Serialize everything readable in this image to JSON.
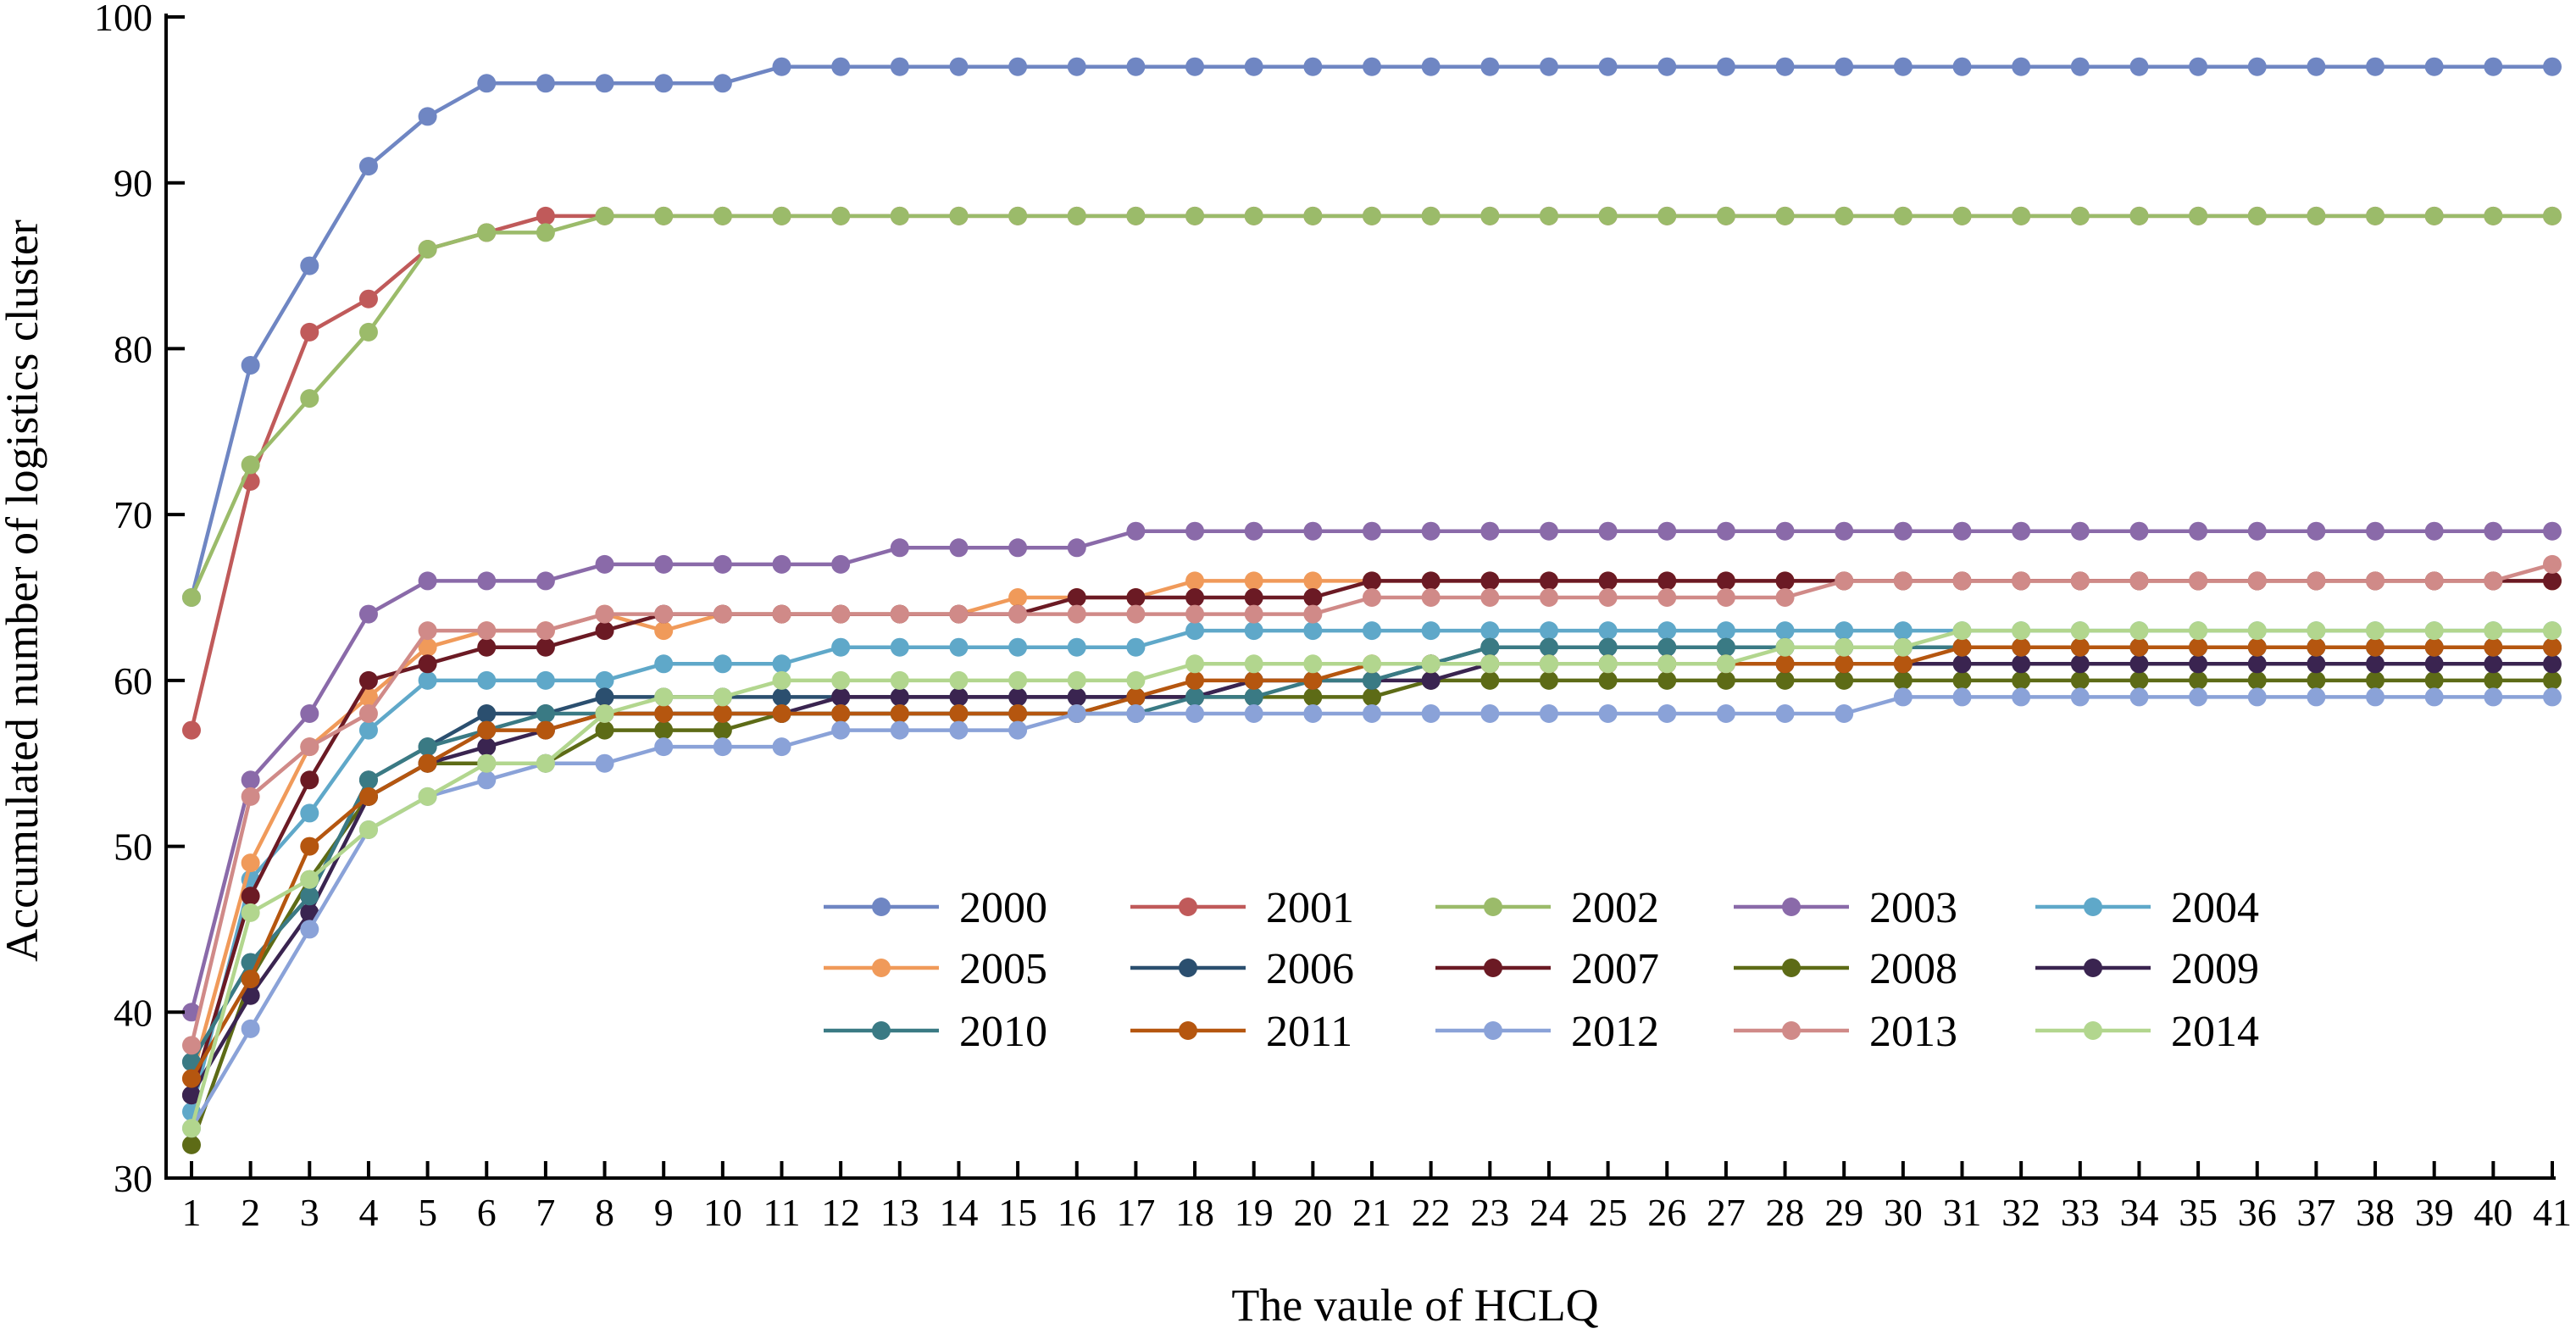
{
  "chart_data": {
    "type": "line",
    "title": "",
    "xlabel": "The vaule of HCLQ",
    "ylabel": "Accumulated number of logistics cluster",
    "x": [
      1,
      2,
      3,
      4,
      5,
      6,
      7,
      8,
      9,
      10,
      11,
      12,
      13,
      14,
      15,
      16,
      17,
      18,
      19,
      20,
      21,
      22,
      23,
      24,
      25,
      26,
      27,
      28,
      29,
      30,
      31,
      32,
      33,
      34,
      35,
      36,
      37,
      38,
      39,
      40,
      41
    ],
    "x_tick_labels": [
      "1",
      "2",
      "3",
      "4",
      "5",
      "6",
      "7",
      "8",
      "9",
      "10",
      "11",
      "12",
      "13",
      "14",
      "15",
      "16",
      "17",
      "18",
      "19",
      "20",
      "21",
      "22",
      "23",
      "24",
      "25",
      "26",
      "27",
      "28",
      "29",
      "30",
      "31",
      "32",
      "33",
      "34",
      "35",
      "36",
      "37",
      "38",
      "39",
      "40",
      "41"
    ],
    "ylim": [
      30,
      100
    ],
    "y_ticks": [
      30,
      40,
      50,
      60,
      70,
      80,
      90,
      100
    ],
    "y_tick_labels": [
      "30",
      "40",
      "50",
      "60",
      "70",
      "80",
      "90",
      "100"
    ],
    "grid": false,
    "legend_position": "bottom-center",
    "series": [
      {
        "name": "2000",
        "color": "#6f86c3",
        "values": [
          65,
          79,
          85,
          91,
          94,
          96,
          96,
          96,
          96,
          96,
          97,
          97,
          97,
          97,
          97,
          97,
          97,
          97,
          97,
          97,
          97,
          97,
          97,
          97,
          97,
          97,
          97,
          97,
          97,
          97,
          97,
          97,
          97,
          97,
          97,
          97,
          97,
          97,
          97,
          97,
          97
        ]
      },
      {
        "name": "2001",
        "color": "#c05a5a",
        "values": [
          57,
          72,
          81,
          83,
          86,
          87,
          88,
          88,
          88,
          88,
          88,
          88,
          88,
          88,
          88,
          88,
          88,
          88,
          88,
          88,
          88,
          88,
          88,
          88,
          88,
          88,
          88,
          88,
          88,
          88,
          88,
          88,
          88,
          88,
          88,
          88,
          88,
          88,
          88,
          88,
          88
        ]
      },
      {
        "name": "2002",
        "color": "#9bbb6a",
        "values": [
          65,
          73,
          77,
          81,
          86,
          87,
          87,
          88,
          88,
          88,
          88,
          88,
          88,
          88,
          88,
          88,
          88,
          88,
          88,
          88,
          88,
          88,
          88,
          88,
          88,
          88,
          88,
          88,
          88,
          88,
          88,
          88,
          88,
          88,
          88,
          88,
          88,
          88,
          88,
          88,
          88
        ]
      },
      {
        "name": "2003",
        "color": "#8a6aa9",
        "values": [
          40,
          54,
          58,
          64,
          66,
          66,
          66,
          67,
          67,
          67,
          67,
          67,
          68,
          68,
          68,
          68,
          69,
          69,
          69,
          69,
          69,
          69,
          69,
          69,
          69,
          69,
          69,
          69,
          69,
          69,
          69,
          69,
          69,
          69,
          69,
          69,
          69,
          69,
          69,
          69,
          69
        ]
      },
      {
        "name": "2004",
        "color": "#5fa8c9",
        "values": [
          34,
          48,
          52,
          57,
          60,
          60,
          60,
          60,
          61,
          61,
          61,
          62,
          62,
          62,
          62,
          62,
          62,
          63,
          63,
          63,
          63,
          63,
          63,
          63,
          63,
          63,
          63,
          63,
          63,
          63,
          63,
          63,
          63,
          63,
          63,
          63,
          63,
          63,
          63,
          63,
          63
        ]
      },
      {
        "name": "2005",
        "color": "#f09a5a",
        "values": [
          36,
          49,
          56,
          59,
          62,
          63,
          63,
          64,
          63,
          64,
          64,
          64,
          64,
          64,
          65,
          65,
          65,
          66,
          66,
          66,
          66,
          66,
          66,
          66,
          66,
          66,
          66,
          66,
          66,
          66,
          66,
          66,
          66,
          66,
          66,
          66,
          66,
          66,
          66,
          66,
          66
        ]
      },
      {
        "name": "2006",
        "color": "#2b4f6f",
        "values": [
          37,
          43,
          47,
          54,
          56,
          58,
          58,
          59,
          59,
          59,
          59,
          59,
          59,
          59,
          59,
          59,
          59,
          59,
          60,
          60,
          60,
          61,
          62,
          62,
          62,
          62,
          62,
          62,
          62,
          62,
          62,
          62,
          62,
          62,
          62,
          62,
          62,
          62,
          62,
          62,
          62
        ]
      },
      {
        "name": "2007",
        "color": "#6b1a24",
        "values": [
          35,
          47,
          54,
          60,
          61,
          62,
          62,
          63,
          64,
          64,
          64,
          64,
          64,
          64,
          64,
          65,
          65,
          65,
          65,
          65,
          66,
          66,
          66,
          66,
          66,
          66,
          66,
          66,
          66,
          66,
          66,
          66,
          66,
          66,
          66,
          66,
          66,
          66,
          66,
          66,
          66
        ]
      },
      {
        "name": "2008",
        "color": "#5d6b16",
        "values": [
          32,
          42,
          48,
          53,
          55,
          55,
          55,
          57,
          57,
          57,
          58,
          58,
          58,
          58,
          58,
          58,
          59,
          59,
          59,
          59,
          59,
          60,
          60,
          60,
          60,
          60,
          60,
          60,
          60,
          60,
          60,
          60,
          60,
          60,
          60,
          60,
          60,
          60,
          60,
          60,
          60
        ]
      },
      {
        "name": "2009",
        "color": "#3a2450",
        "values": [
          35,
          41,
          46,
          53,
          55,
          56,
          57,
          58,
          58,
          58,
          58,
          59,
          59,
          59,
          59,
          59,
          59,
          59,
          60,
          60,
          60,
          60,
          61,
          61,
          61,
          61,
          61,
          61,
          61,
          61,
          61,
          61,
          61,
          61,
          61,
          61,
          61,
          61,
          61,
          61,
          61
        ]
      },
      {
        "name": "2010",
        "color": "#3a7a84",
        "values": [
          37,
          43,
          47,
          54,
          56,
          57,
          58,
          58,
          58,
          58,
          58,
          58,
          58,
          58,
          58,
          58,
          58,
          59,
          59,
          60,
          60,
          61,
          62,
          62,
          62,
          62,
          62,
          62,
          62,
          62,
          62,
          62,
          62,
          62,
          62,
          62,
          62,
          62,
          62,
          62,
          62
        ]
      },
      {
        "name": "2011",
        "color": "#b5560f",
        "values": [
          36,
          42,
          50,
          53,
          55,
          57,
          57,
          58,
          58,
          58,
          58,
          58,
          58,
          58,
          58,
          58,
          59,
          60,
          60,
          60,
          61,
          61,
          61,
          61,
          61,
          61,
          61,
          61,
          61,
          61,
          62,
          62,
          62,
          62,
          62,
          62,
          62,
          62,
          62,
          62,
          62
        ]
      },
      {
        "name": "2012",
        "color": "#8aa2d8",
        "values": [
          33,
          39,
          45,
          51,
          53,
          54,
          55,
          55,
          56,
          56,
          56,
          57,
          57,
          57,
          57,
          58,
          58,
          58,
          58,
          58,
          58,
          58,
          58,
          58,
          58,
          58,
          58,
          58,
          58,
          59,
          59,
          59,
          59,
          59,
          59,
          59,
          59,
          59,
          59,
          59,
          59
        ]
      },
      {
        "name": "2013",
        "color": "#d08a88",
        "values": [
          38,
          53,
          56,
          58,
          63,
          63,
          63,
          64,
          64,
          64,
          64,
          64,
          64,
          64,
          64,
          64,
          64,
          64,
          64,
          64,
          65,
          65,
          65,
          65,
          65,
          65,
          65,
          65,
          66,
          66,
          66,
          66,
          66,
          66,
          66,
          66,
          66,
          66,
          66,
          66,
          67
        ]
      },
      {
        "name": "2014",
        "color": "#b2d68e",
        "values": [
          33,
          46,
          48,
          51,
          53,
          55,
          55,
          58,
          59,
          59,
          60,
          60,
          60,
          60,
          60,
          60,
          60,
          61,
          61,
          61,
          61,
          61,
          61,
          61,
          61,
          61,
          61,
          62,
          62,
          62,
          63,
          63,
          63,
          63,
          63,
          63,
          63,
          63,
          63,
          63,
          63
        ]
      }
    ]
  }
}
